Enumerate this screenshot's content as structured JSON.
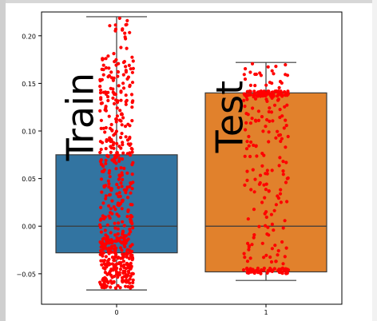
{
  "chart_data": {
    "type": "box",
    "categories": [
      "0",
      "1"
    ],
    "yticks": [
      -0.05,
      0.0,
      0.05,
      0.1,
      0.15,
      0.2
    ],
    "ytick_labels": [
      "−0.05",
      "0.00",
      "0.05",
      "0.10",
      "0.15",
      "0.20"
    ],
    "xtick_labels": [
      "0",
      "1"
    ],
    "ylim": [
      -0.082,
      0.225
    ],
    "grid": false,
    "annotations": [
      {
        "text": "Train",
        "category": "0",
        "y_data": 0.115,
        "rotation": -90
      },
      {
        "text": "Test",
        "category": "1",
        "y_data": 0.115,
        "rotation": -90
      }
    ],
    "boxes": [
      {
        "category": "0",
        "whisker_low": -0.067,
        "q1": -0.028,
        "median": 0.0,
        "q3": 0.075,
        "whisker_high": 0.22,
        "color": "#3274a1"
      },
      {
        "category": "1",
        "whisker_low": -0.057,
        "q1": -0.048,
        "median": 0.0,
        "q3": 0.14,
        "whisker_high": 0.172,
        "color": "#e1812c"
      }
    ],
    "points_color": "#ff0000",
    "points_note": "strip of individual observations jittered over each box"
  },
  "colors": {
    "axis": "#000000",
    "median": "#3a3a3a",
    "whisker": "#3a3a3a"
  }
}
